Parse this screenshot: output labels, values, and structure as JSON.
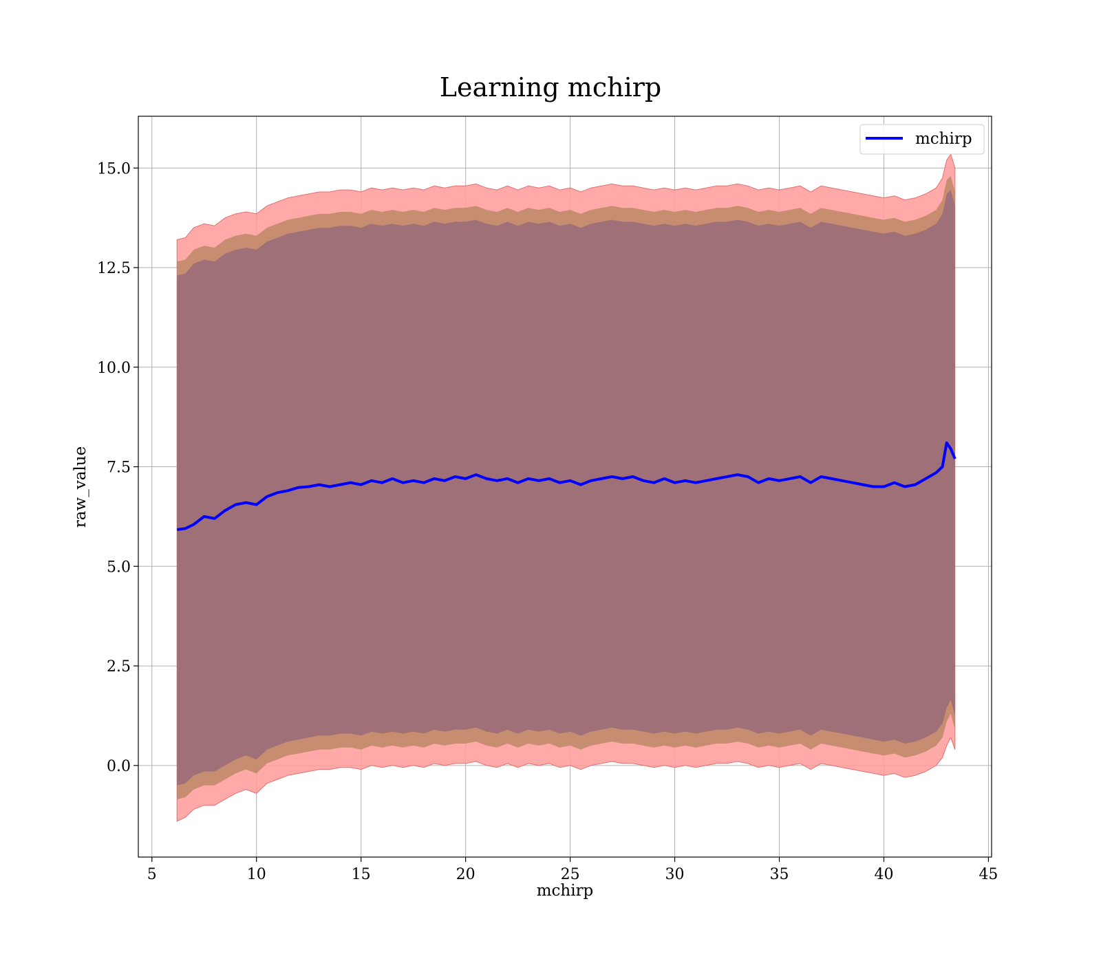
{
  "chart_data": {
    "type": "line",
    "title": "Learning mchirp",
    "xlabel": "mchirp",
    "ylabel": "raw_value",
    "xlim": [
      4.35,
      45.15
    ],
    "ylim": [
      -2.3,
      16.3
    ],
    "xticks": [
      5,
      10,
      15,
      20,
      25,
      30,
      35,
      40,
      45
    ],
    "yticks": [
      0.0,
      2.5,
      5.0,
      7.5,
      10.0,
      12.5,
      15.0
    ],
    "xtick_labels": [
      "5",
      "10",
      "15",
      "20",
      "25",
      "30",
      "35",
      "40",
      "45"
    ],
    "ytick_labels": [
      "0.0",
      "2.5",
      "5.0",
      "7.5",
      "10.0",
      "12.5",
      "15.0"
    ],
    "grid": true,
    "legend_position": "top-right",
    "series": [
      {
        "name": "mchirp",
        "color": "#0000ff",
        "x": [
          6.2,
          6.6,
          7.0,
          7.5,
          8.0,
          8.5,
          9.0,
          9.5,
          10.0,
          10.5,
          11.0,
          11.5,
          12.0,
          12.5,
          13.0,
          13.5,
          14.0,
          14.5,
          15.0,
          15.5,
          16.0,
          16.5,
          17.0,
          17.5,
          18.0,
          18.5,
          19.0,
          19.5,
          20.0,
          20.5,
          21.0,
          21.5,
          22.0,
          22.5,
          23.0,
          23.5,
          24.0,
          24.5,
          25.0,
          25.5,
          26.0,
          26.5,
          27.0,
          27.5,
          28.0,
          28.5,
          29.0,
          29.5,
          30.0,
          30.5,
          31.0,
          31.5,
          32.0,
          32.5,
          33.0,
          33.5,
          34.0,
          34.5,
          35.0,
          35.5,
          36.0,
          36.5,
          37.0,
          37.5,
          38.0,
          38.5,
          39.0,
          39.5,
          40.0,
          40.5,
          41.0,
          41.5,
          42.0,
          42.5,
          42.8,
          43.0,
          43.2,
          43.4
        ],
        "y": [
          5.92,
          5.95,
          6.05,
          6.25,
          6.2,
          6.4,
          6.55,
          6.6,
          6.55,
          6.75,
          6.85,
          6.9,
          6.98,
          7.0,
          7.05,
          7.0,
          7.05,
          7.1,
          7.05,
          7.15,
          7.1,
          7.2,
          7.1,
          7.15,
          7.1,
          7.2,
          7.15,
          7.25,
          7.2,
          7.3,
          7.2,
          7.15,
          7.2,
          7.1,
          7.2,
          7.15,
          7.2,
          7.1,
          7.15,
          7.05,
          7.15,
          7.2,
          7.25,
          7.2,
          7.25,
          7.15,
          7.1,
          7.2,
          7.1,
          7.15,
          7.1,
          7.15,
          7.2,
          7.25,
          7.3,
          7.25,
          7.1,
          7.2,
          7.15,
          7.2,
          7.25,
          7.1,
          7.25,
          7.2,
          7.15,
          7.1,
          7.05,
          7.0,
          7.0,
          7.1,
          7.0,
          7.05,
          7.2,
          7.35,
          7.5,
          8.1,
          7.95,
          7.7
        ],
        "lower_outer": [
          -1.4,
          -1.3,
          -1.1,
          -1.0,
          -1.0,
          -0.85,
          -0.7,
          -0.6,
          -0.7,
          -0.45,
          -0.35,
          -0.25,
          -0.2,
          -0.15,
          -0.1,
          -0.1,
          -0.05,
          -0.05,
          -0.1,
          0.0,
          -0.05,
          0.0,
          -0.05,
          0.0,
          -0.05,
          0.05,
          0.0,
          0.05,
          0.05,
          0.1,
          0.0,
          -0.05,
          0.05,
          -0.05,
          0.05,
          0.0,
          0.05,
          -0.05,
          0.0,
          -0.1,
          0.0,
          0.05,
          0.1,
          0.05,
          0.05,
          0.0,
          -0.05,
          0.0,
          -0.05,
          0.0,
          -0.05,
          0.0,
          0.05,
          0.05,
          0.1,
          0.05,
          -0.05,
          0.0,
          -0.05,
          0.0,
          0.05,
          -0.1,
          0.05,
          0.0,
          -0.05,
          -0.1,
          -0.15,
          -0.2,
          -0.25,
          -0.2,
          -0.3,
          -0.25,
          -0.15,
          0.0,
          0.2,
          0.5,
          0.7,
          0.4
        ],
        "lower_inner": [
          -0.85,
          -0.8,
          -0.6,
          -0.5,
          -0.5,
          -0.35,
          -0.2,
          -0.1,
          -0.2,
          0.05,
          0.15,
          0.25,
          0.3,
          0.35,
          0.4,
          0.4,
          0.45,
          0.45,
          0.4,
          0.5,
          0.45,
          0.5,
          0.45,
          0.5,
          0.45,
          0.55,
          0.5,
          0.55,
          0.55,
          0.6,
          0.5,
          0.45,
          0.55,
          0.45,
          0.55,
          0.5,
          0.55,
          0.45,
          0.5,
          0.4,
          0.5,
          0.55,
          0.6,
          0.55,
          0.55,
          0.5,
          0.45,
          0.5,
          0.45,
          0.5,
          0.45,
          0.5,
          0.55,
          0.55,
          0.6,
          0.55,
          0.45,
          0.5,
          0.45,
          0.5,
          0.55,
          0.4,
          0.55,
          0.5,
          0.45,
          0.4,
          0.35,
          0.3,
          0.25,
          0.3,
          0.2,
          0.25,
          0.35,
          0.5,
          0.7,
          1.1,
          1.3,
          0.9
        ],
        "upper_inner": [
          12.65,
          12.7,
          12.95,
          13.05,
          13.0,
          13.2,
          13.3,
          13.35,
          13.3,
          13.5,
          13.6,
          13.7,
          13.75,
          13.8,
          13.85,
          13.85,
          13.9,
          13.9,
          13.85,
          13.95,
          13.9,
          13.95,
          13.9,
          13.95,
          13.9,
          14.0,
          13.95,
          14.0,
          14.0,
          14.05,
          13.95,
          13.9,
          14.0,
          13.9,
          14.0,
          13.95,
          14.0,
          13.9,
          13.95,
          13.85,
          13.95,
          14.0,
          14.05,
          14.0,
          14.0,
          13.95,
          13.9,
          13.95,
          13.9,
          13.95,
          13.9,
          13.95,
          14.0,
          14.0,
          14.05,
          14.0,
          13.9,
          13.95,
          13.9,
          13.95,
          14.0,
          13.85,
          14.0,
          13.95,
          13.9,
          13.85,
          13.8,
          13.75,
          13.7,
          13.75,
          13.65,
          13.7,
          13.8,
          13.95,
          14.2,
          14.7,
          14.8,
          14.4
        ],
        "upper_outer": [
          13.2,
          13.25,
          13.5,
          13.6,
          13.55,
          13.75,
          13.85,
          13.9,
          13.85,
          14.05,
          14.15,
          14.25,
          14.3,
          14.35,
          14.4,
          14.4,
          14.45,
          14.45,
          14.4,
          14.5,
          14.45,
          14.5,
          14.45,
          14.5,
          14.45,
          14.55,
          14.5,
          14.55,
          14.55,
          14.6,
          14.5,
          14.45,
          14.55,
          14.45,
          14.55,
          14.5,
          14.55,
          14.45,
          14.5,
          14.4,
          14.5,
          14.55,
          14.6,
          14.55,
          14.55,
          14.5,
          14.45,
          14.5,
          14.45,
          14.5,
          14.45,
          14.5,
          14.55,
          14.55,
          14.6,
          14.55,
          14.45,
          14.5,
          14.45,
          14.5,
          14.55,
          14.4,
          14.55,
          14.5,
          14.45,
          14.4,
          14.35,
          14.3,
          14.25,
          14.3,
          14.2,
          14.25,
          14.35,
          14.5,
          14.75,
          15.2,
          15.35,
          15.0
        ]
      }
    ],
    "band_colors": {
      "outer": "#ff9a9a",
      "inner": "#c08a6a",
      "core": "#a07078"
    }
  }
}
